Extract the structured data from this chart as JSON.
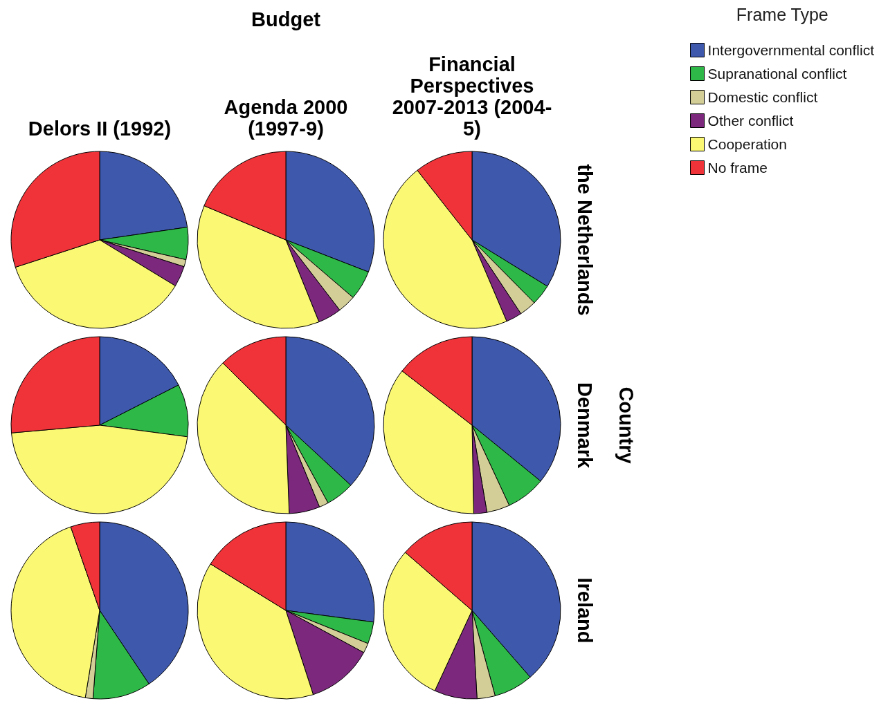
{
  "chart_data": [
    {
      "type": "pie",
      "title": "Delors II (1992)",
      "categories": [
        null,
        null,
        null,
        null,
        null,
        null
      ],
      "values": [
        22.7,
        5.9,
        1.3,
        3.8,
        36.3,
        30.0
      ],
      "colors": [
        "#3e58ac",
        "#2eb848",
        "#d3ce97",
        "#7c287d",
        "#fbf873",
        "#ef3338"
      ]
    },
    {
      "type": "pie",
      "title": "Agenda 2000 (1997-9)",
      "annotations": [
        "Budget"
      ],
      "categories": [
        null,
        null,
        null,
        null,
        null,
        null
      ],
      "values": [
        30.9,
        5.4,
        3.3,
        4.3,
        37.4,
        18.7
      ],
      "colors": [
        "#3e58ac",
        "#2eb848",
        "#d3ce97",
        "#7c287d",
        "#fbf873",
        "#ef3338"
      ]
    },
    {
      "type": "pie",
      "title": "Financial Perspectives 2007-2013 (2004-5)",
      "y2label": "the Netherlands",
      "legend": "top right",
      "legend_title": "Frame Type",
      "categories": [
        "Intergovernmental conflict",
        "Supranational conflict",
        "Domestic conflict",
        "Other conflict",
        "Cooperation",
        "No frame"
      ],
      "values": [
        33.8,
        3.8,
        3.1,
        2.9,
        45.8,
        10.6
      ],
      "colors": [
        "#3e58ac",
        "#2eb848",
        "#d3ce97",
        "#7c287d",
        "#fbf873",
        "#ef3338"
      ]
    },
    {
      "type": "pie",
      "categories": [
        null,
        null,
        null,
        null,
        null,
        null
      ],
      "values": [
        17.5,
        9.6,
        0,
        0,
        46.5,
        26.4
      ],
      "colors": [
        "#3e58ac",
        "#2eb848",
        "#d3ce97",
        "#7c287d",
        "#fbf873",
        "#ef3338"
      ]
    },
    {
      "type": "pie",
      "categories": [
        null,
        null,
        null,
        null,
        null,
        null
      ],
      "values": [
        36.9,
        5.2,
        1.7,
        5.6,
        38.0,
        12.6
      ],
      "colors": [
        "#3e58ac",
        "#2eb848",
        "#d3ce97",
        "#7c287d",
        "#fbf873",
        "#ef3338"
      ]
    },
    {
      "type": "pie",
      "y2label": "Denmark",
      "annotations": [
        "Country"
      ],
      "categories": [
        null,
        null,
        null,
        null,
        null,
        null
      ],
      "values": [
        35.9,
        7.2,
        4.2,
        2.4,
        35.8,
        14.5
      ],
      "colors": [
        "#3e58ac",
        "#2eb848",
        "#d3ce97",
        "#7c287d",
        "#fbf873",
        "#ef3338"
      ]
    },
    {
      "type": "pie",
      "categories": [
        null,
        null,
        null,
        null,
        null,
        null
      ],
      "values": [
        40.6,
        10.6,
        1.4,
        0,
        42.1,
        5.3
      ],
      "colors": [
        "#3e58ac",
        "#2eb848",
        "#d3ce97",
        "#7c287d",
        "#fbf873",
        "#ef3338"
      ]
    },
    {
      "type": "pie",
      "categories": [
        null,
        null,
        null,
        null,
        null,
        null
      ],
      "values": [
        27.1,
        4.0,
        1.8,
        12.1,
        38.8,
        16.2
      ],
      "colors": [
        "#3e58ac",
        "#2eb848",
        "#d3ce97",
        "#7c287d",
        "#fbf873",
        "#ef3338"
      ]
    },
    {
      "type": "pie",
      "y2label": "Ireland",
      "categories": [
        null,
        null,
        null,
        null,
        null,
        null
      ],
      "values": [
        38.6,
        7.2,
        3.3,
        7.8,
        29.5,
        13.6
      ],
      "colors": [
        "#3e58ac",
        "#2eb848",
        "#d3ce97",
        "#7c287d",
        "#fbf873",
        "#ef3338"
      ]
    }
  ]
}
